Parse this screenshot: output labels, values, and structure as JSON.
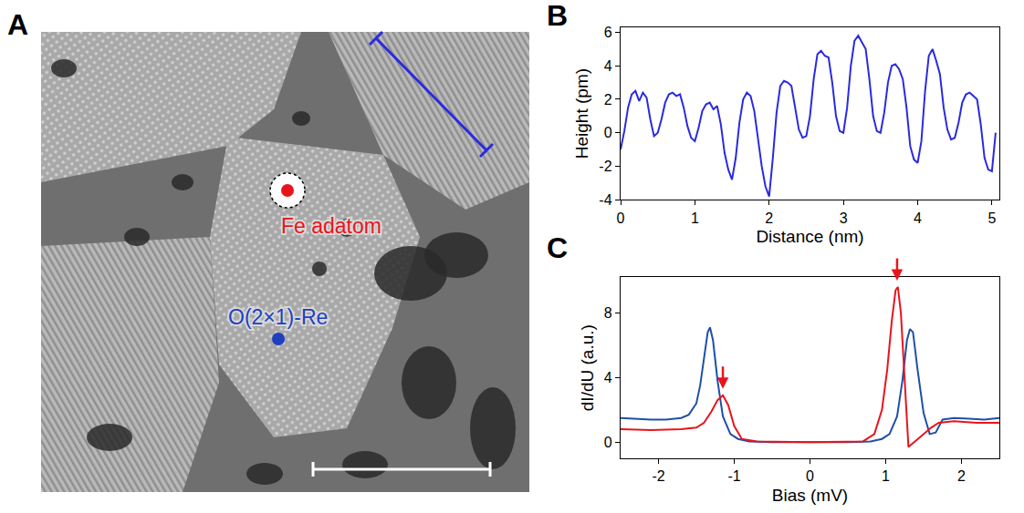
{
  "panel_image": {
    "title": "A",
    "labels": [
      {
        "text": "Fe adatom",
        "color": "#e8141c"
      },
      {
        "text": "O(2×1)-Re",
        "color": "#1f3fbf"
      }
    ]
  },
  "chart_data": [
    {
      "type": "line",
      "title": "B",
      "x_label": "Distance (nm)",
      "y_label": "Height (pm)",
      "color": "#2a2ae0",
      "grid": false,
      "x": [
        0,
        0.05,
        0.1,
        0.15,
        0.2,
        0.25,
        0.3,
        0.35,
        0.4,
        0.45,
        0.5,
        0.55,
        0.6,
        0.65,
        0.7,
        0.75,
        0.8,
        0.85,
        0.9,
        0.95,
        1.0,
        1.05,
        1.1,
        1.15,
        1.2,
        1.25,
        1.3,
        1.35,
        1.4,
        1.45,
        1.5,
        1.55,
        1.6,
        1.65,
        1.7,
        1.75,
        1.8,
        1.85,
        1.9,
        1.95,
        2.0,
        2.05,
        2.1,
        2.15,
        2.2,
        2.25,
        2.3,
        2.35,
        2.4,
        2.45,
        2.5,
        2.55,
        2.6,
        2.65,
        2.7,
        2.75,
        2.8,
        2.85,
        2.9,
        2.95,
        3.0,
        3.05,
        3.1,
        3.15,
        3.2,
        3.25,
        3.3,
        3.35,
        3.4,
        3.45,
        3.5,
        3.55,
        3.6,
        3.65,
        3.7,
        3.75,
        3.8,
        3.85,
        3.9,
        3.95,
        4.0,
        4.05,
        4.1,
        4.15,
        4.2,
        4.25,
        4.3,
        4.35,
        4.4,
        4.45,
        4.5,
        4.55,
        4.6,
        4.65,
        4.7,
        4.75,
        4.8,
        4.85,
        4.9,
        4.95,
        5.0,
        5.05
      ],
      "values": [
        -1,
        0.1,
        1.5,
        2.3,
        2.5,
        1.9,
        2.4,
        2.1,
        0.8,
        -0.2,
        0,
        0.8,
        1.8,
        2.3,
        2.4,
        2.2,
        2.3,
        1.5,
        0.4,
        -0.3,
        -0.5,
        0.3,
        1.3,
        1.7,
        1.8,
        1.4,
        1.6,
        0.5,
        -1.2,
        -2.2,
        -2.8,
        -1.5,
        0.6,
        2.0,
        2.4,
        2.2,
        1.3,
        -0.5,
        -2.0,
        -3.2,
        -3.8,
        -1.5,
        1.2,
        2.8,
        3.1,
        3.0,
        2.8,
        1.5,
        0.2,
        -0.3,
        -0.2,
        1.0,
        3.2,
        4.7,
        4.9,
        4.6,
        4.5,
        3.0,
        1.0,
        0.1,
        0,
        1.5,
        4.0,
        5.5,
        5.8,
        5.4,
        5.0,
        3.2,
        1.0,
        0.1,
        0,
        1.2,
        3.0,
        4.0,
        4.1,
        3.8,
        3.2,
        1.5,
        -0.8,
        -1.6,
        -1.8,
        -0.5,
        2.5,
        4.6,
        5.0,
        4.3,
        3.5,
        1.5,
        0.2,
        -0.4,
        -0.3,
        0.6,
        1.8,
        2.3,
        2.4,
        2.2,
        2.0,
        0.5,
        -1.5,
        -2.2,
        -2.3,
        0.0
      ],
      "xlim": [
        0,
        5.1
      ],
      "ylim": [
        -4,
        6.3
      ],
      "xticks": [
        0,
        1,
        2,
        3,
        4,
        5
      ],
      "yticks": [
        -4,
        -2,
        0,
        2,
        4,
        6
      ]
    },
    {
      "type": "line",
      "title": "C",
      "x_label": "Bias (mV)",
      "y_label": "dI/dU (a.u.)",
      "grid": false,
      "series": [
        {
          "color": "#1f4fa8",
          "x": [
            -2.5,
            -2.3,
            -2.1,
            -1.9,
            -1.7,
            -1.6,
            -1.5,
            -1.45,
            -1.4,
            -1.35,
            -1.32,
            -1.28,
            -1.22,
            -1.15,
            -1.05,
            -0.95,
            -0.8,
            -0.5,
            0,
            0.5,
            0.8,
            0.95,
            1.05,
            1.15,
            1.22,
            1.28,
            1.32,
            1.36,
            1.42,
            1.5,
            1.58,
            1.66,
            1.75,
            1.9,
            2.1,
            2.3,
            2.5
          ],
          "values": [
            1.5,
            1.45,
            1.4,
            1.4,
            1.5,
            1.7,
            2.4,
            3.5,
            5.3,
            6.8,
            7.1,
            6.3,
            3.8,
            1.6,
            0.5,
            0.2,
            0.05,
            0,
            0,
            0,
            0.05,
            0.2,
            0.5,
            1.6,
            3.8,
            6.3,
            7.0,
            6.8,
            4.5,
            1.8,
            0.5,
            0.6,
            1.4,
            1.5,
            1.45,
            1.4,
            1.5
          ]
        },
        {
          "color": "#e8141c",
          "x": [
            -2.5,
            -2.1,
            -1.7,
            -1.5,
            -1.4,
            -1.3,
            -1.22,
            -1.15,
            -1.08,
            -1.0,
            -0.9,
            -0.7,
            0,
            0.7,
            0.85,
            0.95,
            1.02,
            1.08,
            1.13,
            1.16,
            1.2,
            1.25,
            1.3,
            1.4,
            1.5,
            1.6,
            1.7,
            1.9,
            2.2,
            2.5
          ],
          "values": [
            0.8,
            0.75,
            0.8,
            0.9,
            1.2,
            1.9,
            2.6,
            2.9,
            2.3,
            1.0,
            0.2,
            0.05,
            0,
            0.05,
            0.5,
            2.0,
            4.5,
            7.5,
            9.4,
            9.6,
            8.0,
            3.5,
            -0.3,
            0.1,
            0.5,
            0.9,
            1.2,
            1.3,
            1.2,
            1.2
          ]
        }
      ],
      "arrows": [
        {
          "x": -1.15,
          "y": 3.3,
          "color": "#e8141c"
        },
        {
          "x": 1.15,
          "y": 10.0,
          "color": "#e8141c"
        }
      ],
      "xlim": [
        -2.5,
        2.5
      ],
      "ylim": [
        -1,
        10.2
      ],
      "xticks": [
        -2,
        -1,
        0,
        1,
        2
      ],
      "yticks": [
        0,
        4,
        8
      ]
    }
  ]
}
